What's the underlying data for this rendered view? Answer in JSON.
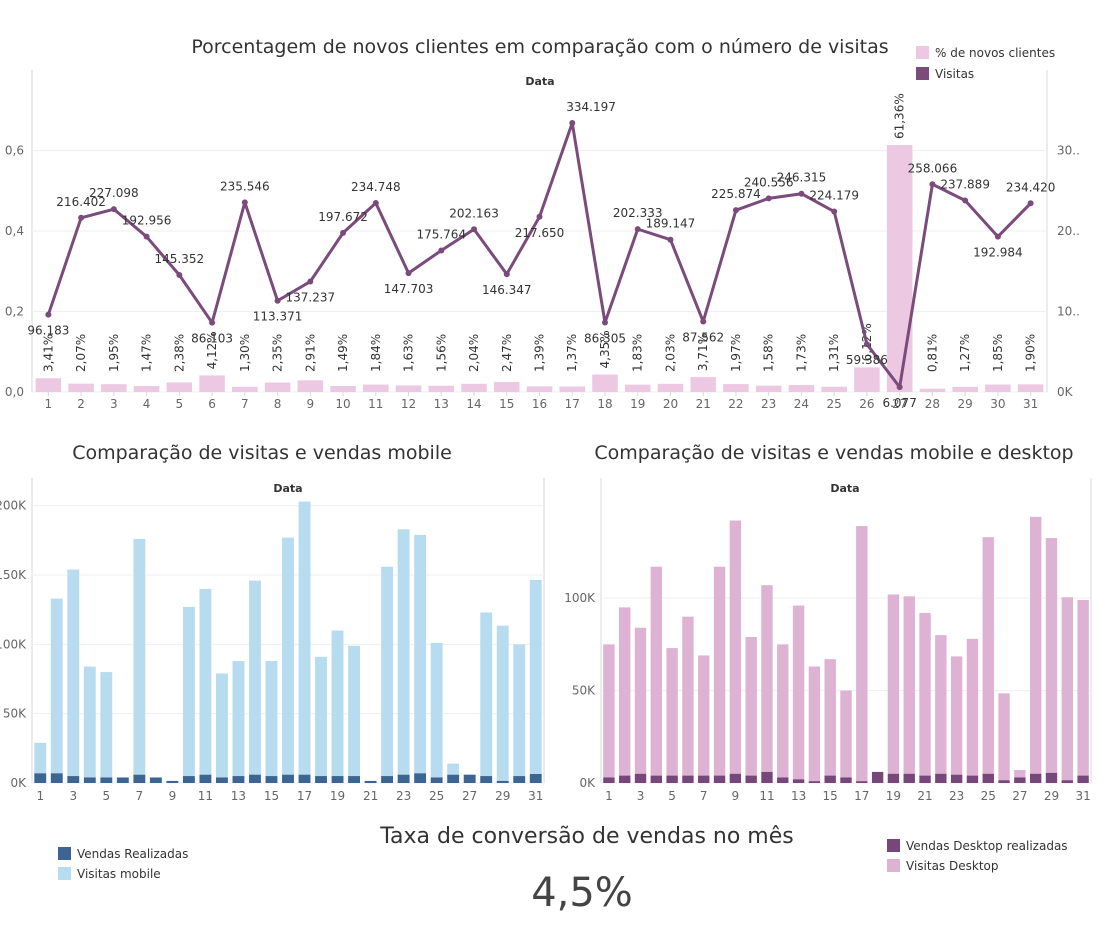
{
  "colors": {
    "pct_new": "#EDC8E3",
    "visits_line": "#7A4B7B",
    "sales_dark_blue": "#3D6594",
    "visits_mobile": "#B8DCEF",
    "sales_desktop": "#77467A",
    "visits_desktop": "#DEB2D2"
  },
  "chart_data": [
    {
      "id": "top",
      "type": "bar+line",
      "title": "Porcentagem de novos clientes em comparação com o número de visitas",
      "xlabel": "Data",
      "x": [
        1,
        2,
        3,
        4,
        5,
        6,
        7,
        8,
        9,
        10,
        11,
        12,
        13,
        14,
        15,
        16,
        17,
        18,
        19,
        20,
        21,
        22,
        23,
        24,
        25,
        26,
        27,
        28,
        29,
        30,
        31
      ],
      "legend": [
        "% de novos clientes",
        "Visitas"
      ],
      "series": [
        {
          "name": "% de novos clientes",
          "type": "bar",
          "axis": "left",
          "values": [
            0.0341,
            0.0207,
            0.0195,
            0.0147,
            0.0238,
            0.0412,
            0.013,
            0.0235,
            0.0291,
            0.0149,
            0.0184,
            0.0163,
            0.0156,
            0.0204,
            0.0247,
            0.0139,
            0.0137,
            0.0435,
            0.0183,
            0.0203,
            0.0371,
            0.0197,
            0.0158,
            0.0173,
            0.0131,
            0.0612,
            0.6136,
            0.0081,
            0.0127,
            0.0185,
            0.019
          ],
          "labels": [
            "3,41%",
            "2,07%",
            "1,95%",
            "1,47%",
            "2,38%",
            "4,12%",
            "1,30%",
            "2,35%",
            "2,91%",
            "1,49%",
            "1,84%",
            "1,63%",
            "1,56%",
            "2,04%",
            "2,47%",
            "1,39%",
            "1,37%",
            "4,35%",
            "1,83%",
            "2,03%",
            "3,71%",
            "1,97%",
            "1,58%",
            "1,73%",
            "1,31%",
            "6,12%",
            "61,36%",
            "0,81%",
            "1,27%",
            "1,85%",
            "1,90%"
          ]
        },
        {
          "name": "Visitas",
          "type": "line",
          "axis": "right",
          "values": [
            96183,
            216402,
            227098,
            192956,
            145352,
            86103,
            235546,
            113371,
            137237,
            197672,
            234748,
            147703,
            175764,
            202163,
            146347,
            217650,
            334197,
            86305,
            202333,
            189147,
            87562,
            225874,
            240556,
            246315,
            224179,
            59386,
            6077,
            258066,
            237889,
            192984,
            234420
          ],
          "labels": [
            "96.183",
            "216.402",
            "227.098",
            "192.956",
            "145.352",
            "86.103",
            "235.546",
            "113.371",
            "137.237",
            "197.672",
            "234.748",
            "147.703",
            "175.764",
            "202.163",
            "146.347",
            "217.650",
            "334.197",
            "86.305",
            "202.333",
            "189.147",
            "87.562",
            "225.874",
            "240.556",
            "246.315",
            "224.179",
            "59.386",
            "6.077",
            "258.066",
            "237.889",
            "192.984",
            "234.420"
          ]
        }
      ],
      "left_axis": {
        "ylim": [
          0,
          0.8
        ],
        "ticks": [
          0,
          0.2,
          0.4,
          0.6
        ],
        "tick_labels": [
          "0,0",
          "0,2",
          "0,4",
          "0,6"
        ]
      },
      "right_axis": {
        "ylim": [
          0,
          400000
        ],
        "ticks": [
          0,
          100000,
          200000,
          300000
        ],
        "tick_labels": [
          "0K",
          "10..",
          "20..",
          "30.."
        ]
      },
      "x_tick_labels": [
        "1",
        "2",
        "3",
        "4",
        "5",
        "6",
        "7",
        "8",
        "9",
        "10",
        "11",
        "12",
        "13",
        "14",
        "15",
        "16",
        "17",
        "18",
        "19",
        "20",
        "21",
        "22",
        "23",
        "24",
        "25",
        "26",
        "27",
        "28",
        "29",
        "30",
        "31"
      ]
    },
    {
      "id": "mobile",
      "type": "bar",
      "title": "Comparação de visitas e vendas mobile",
      "xlabel": "Data",
      "x": [
        1,
        2,
        3,
        4,
        5,
        6,
        7,
        8,
        9,
        10,
        11,
        12,
        13,
        14,
        15,
        16,
        17,
        18,
        19,
        20,
        21,
        22,
        23,
        24,
        25,
        26,
        27,
        28,
        29,
        30,
        31
      ],
      "series": [
        {
          "name": "Visitas mobile",
          "values": [
            22000,
            126000,
            149000,
            80000,
            76000,
            0,
            170000,
            0,
            0,
            122000,
            134000,
            75000,
            83000,
            140000,
            83000,
            171000,
            197000,
            86000,
            105000,
            94000,
            0,
            151000,
            177000,
            172000,
            97000,
            8000,
            0,
            118000,
            112000,
            95000,
            140000
          ]
        },
        {
          "name": "Vendas Realizadas",
          "values": [
            7000,
            7000,
            5000,
            4000,
            4000,
            4000,
            6000,
            4000,
            1500,
            5000,
            6000,
            4000,
            5000,
            6000,
            5000,
            6000,
            6000,
            5000,
            5000,
            5000,
            1500,
            5000,
            6000,
            7000,
            4000,
            6000,
            6000,
            5000,
            1500,
            5000,
            6500
          ]
        }
      ],
      "ylim": [
        0,
        220000
      ],
      "y_ticks": [
        0,
        50000,
        100000,
        150000,
        200000
      ],
      "y_tick_labels": [
        "0K",
        "50K",
        "100K",
        "150K",
        "200K"
      ],
      "x_tick_labels": [
        "1",
        "3",
        "5",
        "7",
        "9",
        "11",
        "13",
        "15",
        "17",
        "19",
        "21",
        "23",
        "25",
        "27",
        "29",
        "31"
      ]
    },
    {
      "id": "desktop",
      "type": "bar",
      "title": "Comparação de visitas e vendas mobile e desktop",
      "xlabel": "Data",
      "x": [
        1,
        2,
        3,
        4,
        5,
        6,
        7,
        8,
        9,
        10,
        11,
        12,
        13,
        14,
        15,
        16,
        17,
        18,
        19,
        20,
        21,
        22,
        23,
        24,
        25,
        26,
        27,
        28,
        29,
        30,
        31
      ],
      "series": [
        {
          "name": "Visitas Desktop",
          "values": [
            72000,
            91000,
            79000,
            113000,
            69000,
            86000,
            65000,
            113000,
            137000,
            75000,
            101000,
            72000,
            94000,
            62000,
            63000,
            47000,
            138000,
            0,
            97000,
            96000,
            88000,
            75000,
            64000,
            74000,
            128000,
            47000,
            4000,
            139000,
            127000,
            99000,
            95000
          ]
        },
        {
          "name": "Vendas Desktop realizadas",
          "values": [
            3000,
            4000,
            5000,
            4000,
            4000,
            4000,
            4000,
            4000,
            5000,
            4000,
            6000,
            3000,
            2000,
            1000,
            4000,
            3000,
            1000,
            6000,
            5000,
            5000,
            4000,
            5000,
            4500,
            4000,
            5000,
            1500,
            3000,
            5000,
            5500,
            1500,
            4000
          ]
        }
      ],
      "ylim": [
        0,
        165000
      ],
      "y_ticks": [
        0,
        50000,
        100000
      ],
      "y_tick_labels": [
        "0K",
        "50K",
        "100K"
      ],
      "x_tick_labels": [
        "1",
        "3",
        "5",
        "7",
        "9",
        "11",
        "13",
        "15",
        "17",
        "19",
        "21",
        "23",
        "25",
        "27",
        "29",
        "31"
      ]
    }
  ],
  "kpi": {
    "title": "Taxa de conversão de vendas no mês",
    "value": "4,5%"
  },
  "legends": {
    "mobile": [
      "Vendas Realizadas",
      "Visitas mobile"
    ],
    "desktop": [
      "Vendas Desktop realizadas",
      "Visitas Desktop"
    ]
  }
}
